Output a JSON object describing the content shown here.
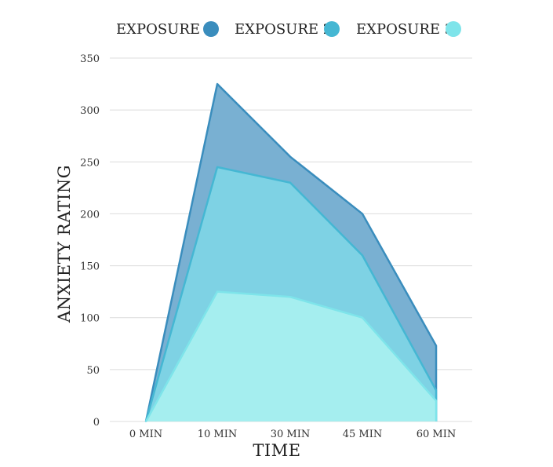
{
  "chart_data": {
    "type": "area",
    "categories": [
      "0 MIN",
      "10 MIN",
      "30 MIN",
      "45 MIN",
      "60 MIN"
    ],
    "series": [
      {
        "name": "EXPOSURE 1",
        "values": [
          0,
          325,
          255,
          200,
          73
        ],
        "color": "#3a8dbd",
        "fill": "#79b0d2"
      },
      {
        "name": "EXPOSURE 2",
        "values": [
          0,
          245,
          230,
          160,
          30
        ],
        "color": "#45b7d3",
        "fill": "#7ed2e4"
      },
      {
        "name": "EXPOSURE 3",
        "values": [
          0,
          125,
          120,
          100,
          20
        ],
        "color": "#7ee4ea",
        "fill": "#a5eeef"
      }
    ],
    "xlabel": "TIME",
    "ylabel": "ANXIETY RATING",
    "ylim": [
      0,
      350
    ],
    "yticks": [
      0,
      50,
      100,
      150,
      200,
      250,
      300,
      350
    ],
    "grid": true,
    "legend": "top"
  }
}
